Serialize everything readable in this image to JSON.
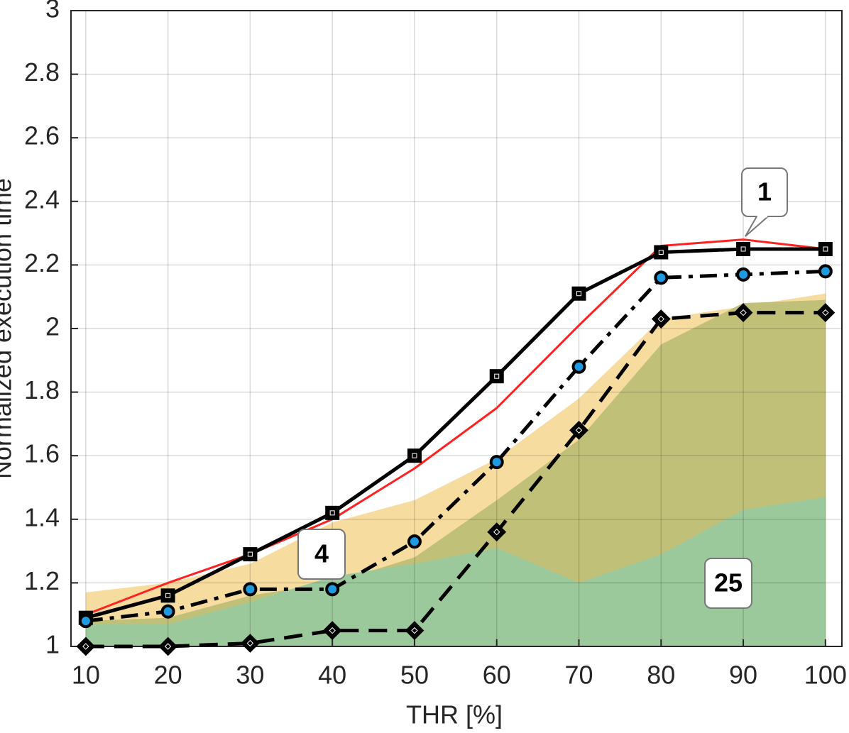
{
  "chart_data": {
    "type": "line",
    "xlabel": "THR [%]",
    "ylabel": "Normalized execution time",
    "x": [
      10,
      20,
      30,
      40,
      50,
      60,
      70,
      80,
      90,
      100
    ],
    "xlim": [
      8.2,
      102
    ],
    "ylim": [
      1,
      3
    ],
    "xticks": [
      10,
      20,
      30,
      40,
      50,
      60,
      70,
      80,
      90,
      100
    ],
    "yticks": [
      1,
      1.2,
      1.4,
      1.6,
      1.8,
      2,
      2.2,
      2.4,
      2.6,
      2.8,
      3
    ],
    "grid": true,
    "areas": [
      {
        "color": "#f7dca0",
        "values": [
          1.17,
          1.2,
          1.26,
          1.39,
          1.46,
          1.59,
          1.78,
          2.03,
          2.07,
          2.11
        ]
      },
      {
        "color": "#c1c078",
        "values": [
          1.08,
          1.09,
          1.16,
          1.2,
          1.28,
          1.46,
          1.65,
          1.95,
          2.08,
          2.09
        ]
      },
      {
        "color": "#9cc99c",
        "values": [
          1.07,
          1.07,
          1.14,
          1.22,
          1.26,
          1.31,
          1.2,
          1.29,
          1.43,
          1.47
        ]
      }
    ],
    "series": [
      {
        "color": "#ff2020",
        "dash": "solid",
        "marker": "none",
        "width": 3,
        "values": [
          1.1,
          1.2,
          1.29,
          1.4,
          1.56,
          1.75,
          2.01,
          2.26,
          2.28,
          2.25
        ]
      },
      {
        "color": "#000000",
        "dash": "solid",
        "marker": "square",
        "marker_color": "#000000",
        "width": 5,
        "values": [
          1.09,
          1.16,
          1.29,
          1.42,
          1.6,
          1.85,
          2.11,
          2.24,
          2.25,
          2.25
        ]
      },
      {
        "color": "#000000",
        "dash": "dashdot",
        "marker": "circle",
        "marker_color": "#1e9be0",
        "width": 5,
        "values": [
          1.08,
          1.11,
          1.18,
          1.18,
          1.33,
          1.58,
          1.88,
          2.16,
          2.17,
          2.18
        ]
      },
      {
        "color": "#000000",
        "dash": "dashed",
        "marker": "diamond",
        "marker_color": "#000000",
        "width": 5,
        "values": [
          1.0,
          1.0,
          1.01,
          1.05,
          1.05,
          1.36,
          1.68,
          2.03,
          2.05,
          2.05
        ]
      }
    ],
    "annotations": [
      "1",
      "4",
      "25"
    ]
  }
}
